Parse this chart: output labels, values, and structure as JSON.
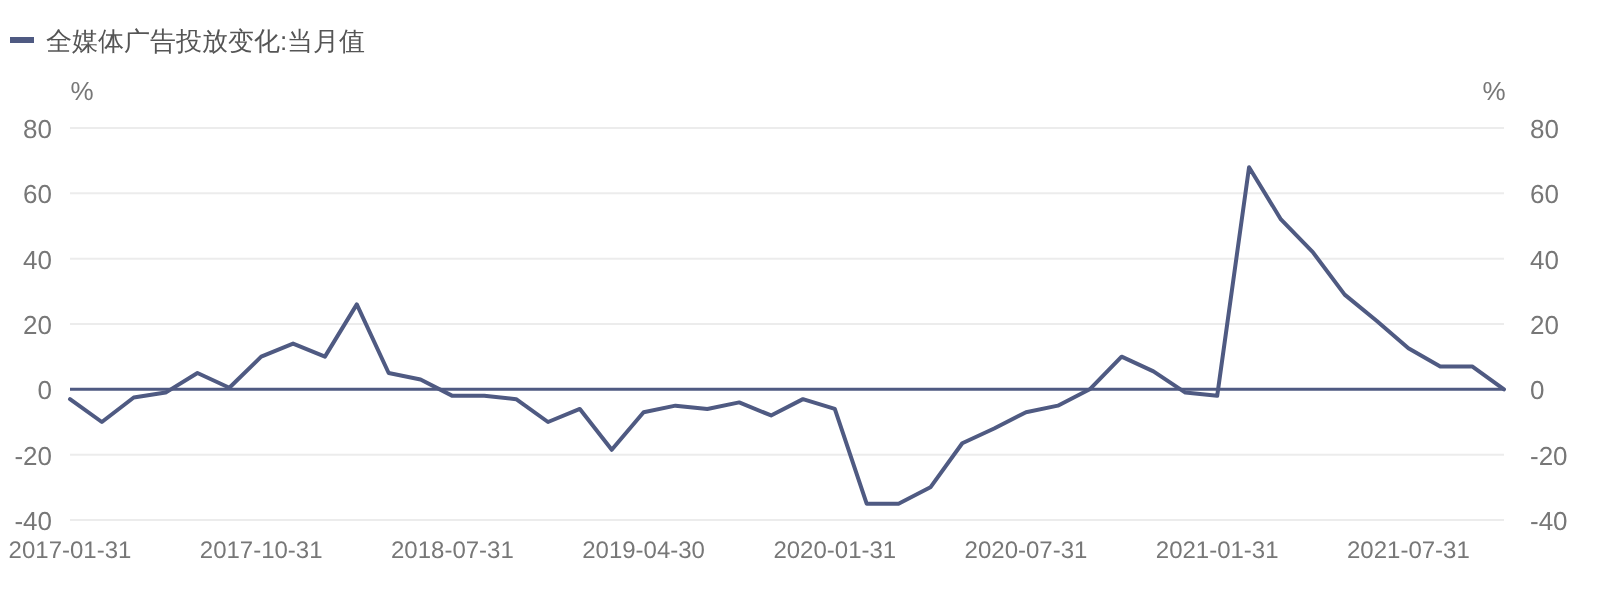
{
  "chart_data": {
    "type": "line",
    "ylabel": "%",
    "y2label": "%",
    "categories": [
      "2017-01-31",
      null,
      null,
      null,
      null,
      null,
      "2017-10-31",
      null,
      null,
      null,
      null,
      null,
      "2018-07-31",
      null,
      null,
      null,
      null,
      null,
      "2019-04-30",
      null,
      null,
      null,
      null,
      null,
      "2020-01-31",
      null,
      null,
      null,
      null,
      null,
      "2020-07-31",
      null,
      null,
      null,
      null,
      null,
      "2021-01-31",
      null,
      null,
      null,
      null,
      null,
      "2021-07-31",
      null,
      null,
      null
    ],
    "series": [
      {
        "name": "全媒体广告投放变化:当月值",
        "color": "#4f5a82",
        "values": [
          -3,
          -10,
          -2.5,
          -1,
          5,
          0.5,
          10,
          14,
          10,
          26,
          5,
          3,
          -2,
          -2,
          -3,
          -10,
          -6,
          -18.5,
          -7,
          -5,
          -6,
          -4,
          -8,
          -3,
          -6,
          -35,
          -35,
          -30,
          -16.5,
          -12,
          -7,
          -5,
          0,
          10,
          5.5,
          -1,
          -2,
          68,
          52,
          42,
          29,
          21,
          12.6,
          7,
          7,
          0
        ]
      }
    ],
    "ylim": [
      -40,
      80
    ],
    "yticks": [
      -40,
      -20,
      0,
      20,
      40,
      60,
      80
    ],
    "y2lim": [
      -40,
      80
    ],
    "y2ticks": [
      -40,
      -20,
      0,
      20,
      40,
      60,
      80
    ],
    "ref_lines": [
      {
        "axis": "y",
        "value": 0,
        "color": "#4f5a82"
      }
    ],
    "grid": "y",
    "legend": "top left",
    "marker": "none",
    "line_style": "solid"
  }
}
